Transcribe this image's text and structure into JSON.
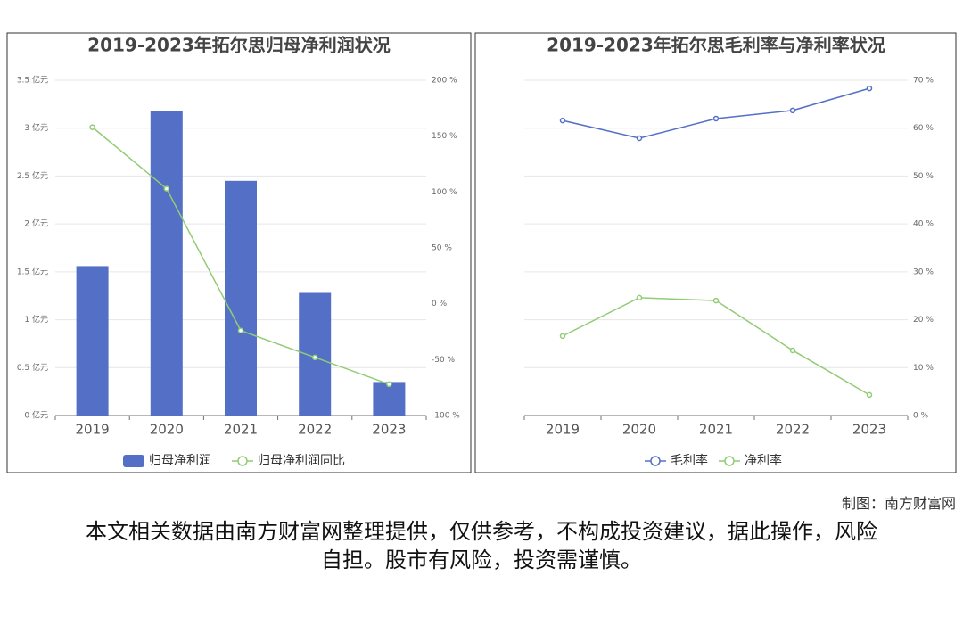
{
  "chart_data": [
    {
      "type": "bar",
      "title": "2019-2023年拓尔思归母净利润状况",
      "categories": [
        "2019",
        "2020",
        "2021",
        "2022",
        "2023"
      ],
      "series": [
        {
          "name": "归母净利润",
          "type": "bar",
          "color": "#5470c6",
          "values": [
            1.56,
            3.18,
            2.45,
            1.28,
            0.35
          ]
        },
        {
          "name": "归母净利润同比",
          "type": "line",
          "axis": "y2",
          "color": "#91cc75",
          "values": [
            158,
            103,
            -24,
            -48,
            -72
          ]
        }
      ],
      "ylim": [
        0,
        3.5
      ],
      "yticks": [
        {
          "value": 0,
          "label": "0 亿元"
        },
        {
          "value": 0.5,
          "label": "0.5 亿元"
        },
        {
          "value": 1,
          "label": "1 亿元"
        },
        {
          "value": 1.5,
          "label": "1.5 亿元"
        },
        {
          "value": 2,
          "label": "2 亿元"
        },
        {
          "value": 2.5,
          "label": "2.5 亿元"
        },
        {
          "value": 3,
          "label": "3 亿元"
        },
        {
          "value": 3.5,
          "label": "3.5 亿元"
        }
      ],
      "y2lim": [
        -100,
        200
      ],
      "y2ticks": [
        {
          "value": -100,
          "label": "-100 %"
        },
        {
          "value": -50,
          "label": "-50 %"
        },
        {
          "value": 0,
          "label": "0 %"
        },
        {
          "value": 50,
          "label": "50 %"
        },
        {
          "value": 100,
          "label": "100 %"
        },
        {
          "value": 150,
          "label": "150 %"
        },
        {
          "value": 200,
          "label": "200 %"
        }
      ],
      "grid": true
    },
    {
      "type": "line",
      "title": "2019-2023年拓尔思毛利率与净利率状况",
      "categories": [
        "2019",
        "2020",
        "2021",
        "2022",
        "2023"
      ],
      "series": [
        {
          "name": "毛利率",
          "type": "line",
          "axis": "y2",
          "color": "#5470c6",
          "values": [
            61.6,
            57.9,
            62.0,
            63.7,
            68.3
          ]
        },
        {
          "name": "净利率",
          "type": "line",
          "axis": "y2",
          "color": "#91cc75",
          "values": [
            16.6,
            24.6,
            24.0,
            13.6,
            4.3
          ]
        }
      ],
      "y2lim": [
        0,
        70
      ],
      "y2ticks": [
        {
          "value": 0,
          "label": "0 %"
        },
        {
          "value": 10,
          "label": "10 %"
        },
        {
          "value": 20,
          "label": "20 %"
        },
        {
          "value": 30,
          "label": "30 %"
        },
        {
          "value": 40,
          "label": "40 %"
        },
        {
          "value": 50,
          "label": "50 %"
        },
        {
          "value": 60,
          "label": "60 %"
        },
        {
          "value": 70,
          "label": "70 %"
        }
      ],
      "grid": true
    }
  ],
  "credit": "制图：南方财富网",
  "disclaimer": "本文相关数据由南方财富网整理提供，仅供参考，不构成投资建议，据此操作，风险自担。股市有风险，投资需谨慎。"
}
